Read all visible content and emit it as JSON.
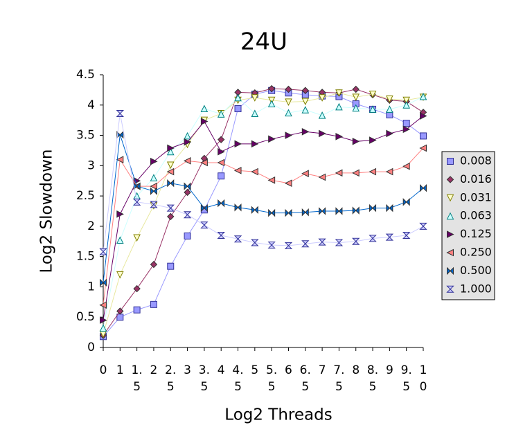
{
  "chart_data": {
    "type": "line",
    "title": "24U",
    "x_label": "Log2 Threads",
    "y_label": "Log2 Slowdown",
    "categories": [
      "0",
      "1",
      "1.5",
      "2",
      "2.5",
      "3",
      "3.5",
      "4",
      "4.5",
      "5",
      "5.5",
      "6",
      "6.5",
      "7",
      "7.5",
      "8",
      "8.5",
      "9",
      "9.5",
      "10"
    ],
    "ylim": [
      0,
      4.5
    ],
    "yticks": [
      0,
      0.5,
      1,
      1.5,
      2,
      2.5,
      3,
      3.5,
      4,
      4.5
    ],
    "grid": false,
    "legend": "right",
    "series": [
      {
        "name": "0.008",
        "color": "#9999ff",
        "marker": "square",
        "values": [
          0.18,
          0.5,
          0.62,
          0.71,
          1.34,
          1.84,
          2.27,
          2.83,
          3.94,
          4.18,
          4.24,
          4.2,
          4.17,
          4.15,
          4.14,
          4.02,
          3.93,
          3.84,
          3.7,
          3.49
        ]
      },
      {
        "name": "0.016",
        "color": "#993366",
        "marker": "diamond",
        "values": [
          0.2,
          0.6,
          0.97,
          1.37,
          2.16,
          2.56,
          3.12,
          3.43,
          4.21,
          4.2,
          4.27,
          4.26,
          4.24,
          4.21,
          4.2,
          4.26,
          4.17,
          4.08,
          4.06,
          3.88
        ]
      },
      {
        "name": "0.031",
        "color": "#ffffcc",
        "marker": "triangle-down",
        "values": [
          0.22,
          1.2,
          1.81,
          2.34,
          3.01,
          3.35,
          3.75,
          3.86,
          4.08,
          4.12,
          4.08,
          4.05,
          4.06,
          4.12,
          4.2,
          4.13,
          4.18,
          4.1,
          4.08,
          4.13
        ]
      },
      {
        "name": "0.063",
        "color": "#ccffff",
        "marker": "triangle-up",
        "values": [
          0.32,
          1.77,
          2.5,
          2.8,
          3.23,
          3.49,
          3.94,
          3.85,
          4.12,
          3.86,
          4.02,
          3.87,
          3.92,
          3.83,
          3.97,
          3.95,
          3.93,
          3.93,
          4.0,
          4.14
        ]
      },
      {
        "name": "0.125",
        "color": "#660066",
        "marker": "triangle-right",
        "values": [
          0.45,
          2.2,
          2.75,
          3.07,
          3.29,
          3.39,
          3.73,
          3.23,
          3.36,
          3.36,
          3.44,
          3.5,
          3.56,
          3.53,
          3.48,
          3.4,
          3.42,
          3.53,
          3.6,
          3.82
        ]
      },
      {
        "name": "0.250",
        "color": "#ff8080",
        "marker": "triangle-left",
        "values": [
          0.7,
          3.1,
          2.66,
          2.66,
          2.9,
          3.08,
          3.05,
          3.05,
          2.92,
          2.9,
          2.76,
          2.71,
          2.87,
          2.81,
          2.88,
          2.88,
          2.9,
          2.9,
          2.99,
          3.29
        ]
      },
      {
        "name": "0.500",
        "color": "#0066cc",
        "marker": "bowtie",
        "values": [
          1.07,
          3.51,
          2.66,
          2.58,
          2.71,
          2.66,
          2.3,
          2.38,
          2.31,
          2.27,
          2.22,
          2.22,
          2.23,
          2.25,
          2.25,
          2.26,
          2.3,
          2.3,
          2.4,
          2.63
        ]
      },
      {
        "name": "1.000",
        "color": "#ccccff",
        "marker": "hourglass",
        "values": [
          1.58,
          3.86,
          2.4,
          2.36,
          2.3,
          2.19,
          2.02,
          1.85,
          1.79,
          1.73,
          1.69,
          1.68,
          1.71,
          1.74,
          1.73,
          1.75,
          1.8,
          1.82,
          1.85,
          2.0
        ]
      }
    ]
  }
}
